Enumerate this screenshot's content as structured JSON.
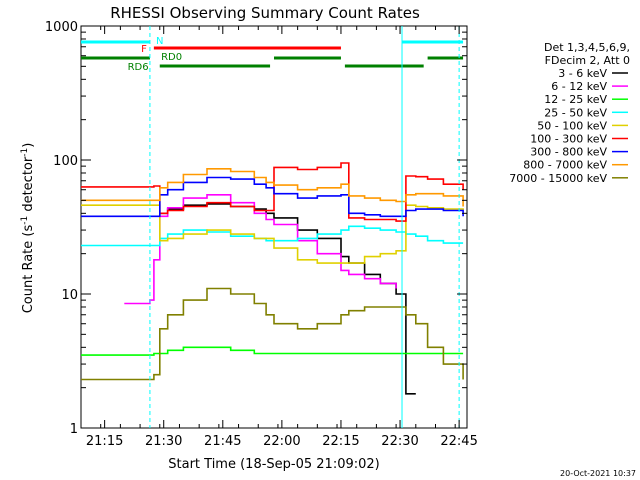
{
  "colors": {
    "c3_6": "#000000",
    "c6_12": "#ff00ff",
    "c12_25": "#00ff00",
    "c25_50": "#00ffff",
    "c50_100": "#e0d000",
    "c100_300": "#ff0000",
    "c300_800": "#0000ff",
    "c800_7000": "#ff9900",
    "c7000_15000": "#808000",
    "flagN": "#00ffff",
    "flagF": "#ff0000",
    "flagRD0": "#008000"
  },
  "chart_data": {
    "type": "line",
    "title": "RHESSI Observing Summary Count Rates",
    "xlabel": "Start Time (18-Sep-05 21:09:02)",
    "ylabel_main": "Count Rate (s",
    "ylabel_sup1": "-1",
    "ylabel_mid": " detector",
    "ylabel_sup2": "-1",
    "ylabel_end": ")",
    "yscale": "log",
    "ylim": [
      1,
      1000
    ],
    "xlim": [
      "21:09",
      "22:47"
    ],
    "grid": false,
    "legend_position": "right",
    "legend_header": [
      "Det 1,3,4,5,6,9,",
      "FDecim 2, Att 0"
    ],
    "timestamp": "20-Oct-2021 10:37",
    "x_ticks": [
      "21:15",
      "21:30",
      "21:45",
      "22:00",
      "22:15",
      "22:30",
      "22:45"
    ],
    "x_tick_minutes": [
      6,
      21,
      36,
      51,
      66,
      81,
      96
    ],
    "y_ticks": [
      "1",
      "10",
      "100",
      "1000"
    ],
    "y_tick_values": [
      1,
      10,
      100,
      1000
    ],
    "time_minutes": [
      0,
      11,
      17.5,
      18.5,
      20,
      22,
      26,
      32,
      38,
      44,
      47,
      49,
      55,
      60,
      66,
      68,
      72,
      76,
      80,
      82.5,
      85,
      88,
      92,
      97
    ],
    "series": [
      {
        "name": "3 - 6 keV",
        "color_key": "c3_6",
        "values": [
          null,
          null,
          null,
          null,
          40,
          43,
          46,
          47,
          45,
          43,
          40,
          37,
          30,
          26,
          19,
          17,
          14,
          12,
          10,
          1.8,
          1.8,
          null,
          null,
          null
        ]
      },
      {
        "name": "6 - 12 keV",
        "color_key": "c6_12",
        "values": [
          null,
          8.5,
          9,
          18,
          38,
          44,
          52,
          55,
          48,
          40,
          36,
          33,
          25,
          20,
          15,
          14,
          13,
          12,
          11,
          null,
          null,
          null,
          null,
          null
        ]
      },
      {
        "name": "12 - 25 keV",
        "color_key": "c12_25",
        "values": [
          3.5,
          3.5,
          3.5,
          3.6,
          3.6,
          3.8,
          4,
          4,
          3.8,
          3.6,
          3.6,
          3.6,
          3.6,
          3.6,
          3.6,
          3.6,
          3.6,
          3.6,
          3.6,
          3.6,
          3.6,
          3.6,
          3.6,
          3.6
        ]
      },
      {
        "name": "25 - 50 keV",
        "color_key": "c25_50",
        "values": [
          23,
          23,
          23,
          23,
          26,
          28,
          30,
          29,
          27,
          26,
          25,
          25,
          26,
          28,
          30,
          32,
          31,
          30,
          29,
          28,
          27,
          25,
          24,
          24
        ]
      },
      {
        "name": "50 - 100 keV",
        "color_key": "c50_100",
        "values": [
          46,
          46,
          46,
          46,
          25,
          26,
          28,
          30,
          28,
          26,
          26,
          22,
          18,
          17,
          17,
          17,
          19,
          20,
          21,
          46,
          45,
          44,
          43,
          42
        ]
      },
      {
        "name": "100 - 300 keV",
        "color_key": "c100_300",
        "values": [
          63,
          63,
          63,
          64,
          40,
          42,
          45,
          48,
          45,
          42,
          42,
          88,
          85,
          88,
          95,
          37,
          36,
          36,
          35,
          76,
          75,
          72,
          66,
          60
        ]
      },
      {
        "name": "300 - 800 keV",
        "color_key": "c300_800",
        "values": [
          38,
          38,
          38,
          38,
          55,
          60,
          68,
          74,
          72,
          66,
          62,
          56,
          52,
          54,
          55,
          40,
          39,
          38,
          38,
          42,
          43,
          43,
          42,
          38
        ]
      },
      {
        "name": "800 - 7000 keV",
        "color_key": "c800_7000",
        "values": [
          50,
          50,
          50,
          50,
          62,
          68,
          78,
          86,
          82,
          74,
          68,
          65,
          60,
          62,
          66,
          54,
          52,
          50,
          49,
          55,
          56,
          56,
          54,
          45
        ]
      },
      {
        "name": "7000 - 15000 keV",
        "color_key": "c7000_15000",
        "values": [
          2.3,
          2.3,
          2.3,
          2.5,
          5.5,
          7,
          9,
          11,
          10,
          8.5,
          7,
          6,
          5.5,
          6,
          7,
          7.5,
          8,
          8,
          8,
          7,
          6,
          4,
          3,
          2.3
        ]
      }
    ],
    "flags": [
      {
        "label": "N",
        "color_key": "flagN",
        "level": 1,
        "label_minute": 20,
        "intervals": [
          [
            0,
            17.5
          ],
          [
            81.5,
            97
          ]
        ]
      },
      {
        "label": "F",
        "color_key": "flagF",
        "level": 2,
        "label_minute": 16,
        "intervals": [
          [
            18.5,
            66
          ]
        ]
      },
      {
        "label": "RD0",
        "color_key": "flagRD0",
        "level": 3,
        "label_minute": 23,
        "intervals": [
          [
            0,
            17.5
          ],
          [
            49,
            66
          ],
          [
            88,
            97
          ]
        ]
      },
      {
        "label": "RD6",
        "color_key": "flagRD0",
        "level": 4,
        "label_minute": 14.5,
        "intervals": [
          [
            20,
            48
          ],
          [
            67,
            87
          ]
        ]
      }
    ],
    "vertical_markers": [
      {
        "minute": 17.5,
        "style": "dashed"
      },
      {
        "minute": 81.5,
        "style": "solid"
      },
      {
        "minute": 96,
        "style": "dashed"
      }
    ]
  }
}
